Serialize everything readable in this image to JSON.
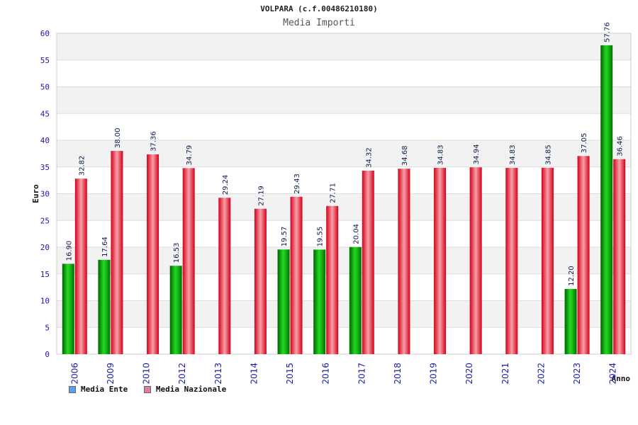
{
  "chart_data": {
    "type": "bar",
    "title": "VOLPARA (c.f.00486210180)",
    "subtitle": "Media Importi",
    "ylabel": "Euro",
    "xlabel": "Anno",
    "ylim": [
      0,
      60
    ],
    "yticks": [
      0,
      5,
      10,
      15,
      20,
      25,
      30,
      35,
      40,
      45,
      50,
      55,
      60
    ],
    "categories": [
      "2006",
      "2009",
      "2010",
      "2012",
      "2013",
      "2014",
      "2015",
      "2016",
      "2017",
      "2018",
      "2019",
      "2020",
      "2021",
      "2022",
      "2023",
      "2024"
    ],
    "series": [
      {
        "name": "Media Ente",
        "values": [
          16.9,
          17.64,
          null,
          16.53,
          null,
          null,
          19.57,
          19.55,
          20.04,
          null,
          null,
          null,
          null,
          null,
          12.2,
          57.76
        ],
        "labels": [
          "16.90",
          "17.64",
          "",
          "16.53",
          "",
          "",
          "19.57",
          "19.55",
          "20.04",
          "",
          "",
          "",
          "",
          "",
          "12.20",
          "57.76"
        ]
      },
      {
        "name": "Media Nazionale",
        "values": [
          32.82,
          38.0,
          37.36,
          34.79,
          29.24,
          27.19,
          29.43,
          27.71,
          34.32,
          34.68,
          34.83,
          34.94,
          34.83,
          34.85,
          37.05,
          36.46
        ],
        "labels": [
          "32.82",
          "38.00",
          "37.36",
          "34.79",
          "29.24",
          "27.19",
          "29.43",
          "27.71",
          "34.32",
          "34.68",
          "34.83",
          "34.94",
          "34.83",
          "34.85",
          "37.05",
          "36.46"
        ]
      }
    ],
    "grid": true,
    "legend_position": "bottom-left",
    "colors": {
      "ente_bar": "#00a000",
      "nazionale_bar": "#e8101e",
      "ente_legend": "#5aa0e6",
      "nazionale_legend": "#e07aa8",
      "band_shaded": "#f2f2f2",
      "axis_text": "#1a1aa8"
    }
  }
}
